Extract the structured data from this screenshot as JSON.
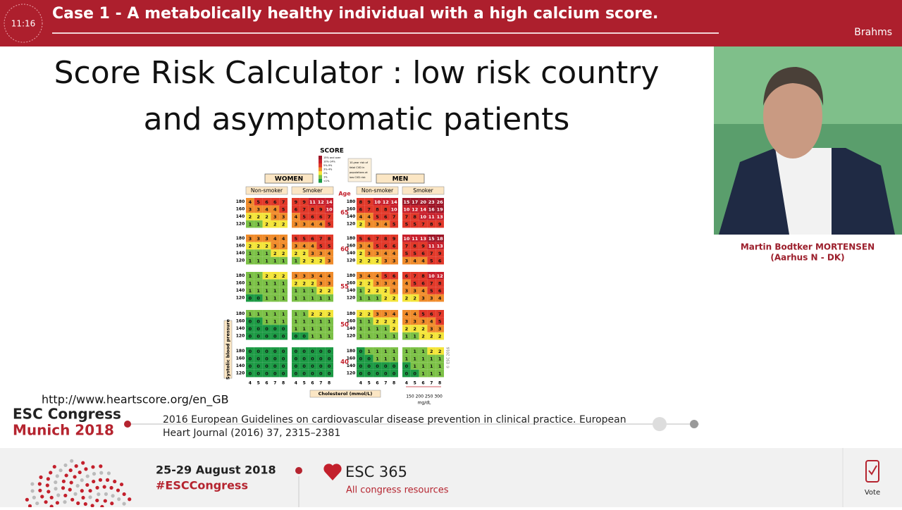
{
  "header": {
    "time": "11:16",
    "title": "Case 1 - A metabolically healthy individual with a high calcium score.",
    "room": "Brahms"
  },
  "slide": {
    "title": [
      "Score Risk Calculator : low risk country",
      "and asymptomatic patients"
    ],
    "url": "http://www.heartscore.org/en_GB",
    "reference": [
      "2016 European Guidelines on cardiovascular disease prevention in clinical practice. European",
      "Heart Journal (2016) 37, 2315–2381"
    ],
    "chart": {
      "logo": "SCORE",
      "legend": [
        "15% and over",
        "10%-14%",
        "5%-9%",
        "3%-4%",
        "2%",
        "1%",
        "<1%"
      ],
      "legend_note": [
        "10-year risk of",
        "fatal CVD in",
        "populations at",
        "low CVD risk"
      ],
      "sexes": [
        "WOMEN",
        "MEN"
      ],
      "panel_headers": [
        "Non-smoker",
        "Smoker",
        "Non-smoker",
        "Smoker"
      ],
      "age_label": "Age",
      "sbp": [
        "180",
        "160",
        "140",
        "120"
      ],
      "groups": [
        {
          "age": "65",
          "panels": [
            [
              [
                4,
                5,
                6,
                6,
                7
              ],
              [
                3,
                3,
                4,
                4,
                5
              ],
              [
                2,
                2,
                2,
                3,
                3
              ],
              [
                1,
                1,
                2,
                2,
                2
              ]
            ],
            [
              [
                9,
                9,
                11,
                12,
                14
              ],
              [
                6,
                7,
                8,
                9,
                10
              ],
              [
                4,
                5,
                6,
                6,
                7
              ],
              [
                3,
                3,
                4,
                4,
                5
              ]
            ],
            [
              [
                8,
                9,
                10,
                12,
                14
              ],
              [
                6,
                7,
                8,
                8,
                10
              ],
              [
                4,
                4,
                5,
                6,
                7
              ],
              [
                2,
                3,
                3,
                4,
                5
              ]
            ],
            [
              [
                15,
                17,
                20,
                23,
                26
              ],
              [
                10,
                12,
                14,
                16,
                19
              ],
              [
                7,
                8,
                10,
                11,
                13
              ],
              [
                5,
                5,
                7,
                8,
                9
              ]
            ]
          ]
        },
        {
          "age": "60",
          "panels": [
            [
              [
                3,
                3,
                3,
                4,
                4
              ],
              [
                2,
                2,
                2,
                3,
                3
              ],
              [
                1,
                1,
                1,
                2,
                2
              ],
              [
                1,
                1,
                1,
                1,
                1
              ]
            ],
            [
              [
                5,
                5,
                6,
                7,
                8
              ],
              [
                3,
                4,
                4,
                5,
                5
              ],
              [
                2,
                2,
                3,
                3,
                4
              ],
              [
                1,
                2,
                2,
                2,
                3
              ]
            ],
            [
              [
                5,
                6,
                7,
                8,
                9
              ],
              [
                3,
                4,
                5,
                6,
                6
              ],
              [
                2,
                3,
                3,
                4,
                4
              ],
              [
                2,
                2,
                2,
                3,
                3
              ]
            ],
            [
              [
                10,
                11,
                13,
                15,
                18
              ],
              [
                7,
                8,
                9,
                11,
                13
              ],
              [
                5,
                5,
                6,
                7,
                9
              ],
              [
                3,
                4,
                4,
                5,
                6
              ]
            ]
          ]
        },
        {
          "age": "55",
          "panels": [
            [
              [
                1,
                1,
                2,
                2,
                2
              ],
              [
                1,
                1,
                1,
                1,
                1
              ],
              [
                1,
                1,
                1,
                1,
                1
              ],
              [
                0,
                0,
                1,
                1,
                1
              ]
            ],
            [
              [
                3,
                3,
                3,
                4,
                4
              ],
              [
                2,
                2,
                2,
                3,
                3
              ],
              [
                1,
                1,
                1,
                2,
                2
              ],
              [
                1,
                1,
                1,
                1,
                1
              ]
            ],
            [
              [
                3,
                4,
                4,
                5,
                6
              ],
              [
                2,
                2,
                3,
                3,
                4
              ],
              [
                1,
                2,
                2,
                2,
                3
              ],
              [
                1,
                1,
                1,
                2,
                2
              ]
            ],
            [
              [
                6,
                7,
                8,
                10,
                12
              ],
              [
                4,
                5,
                6,
                7,
                8
              ],
              [
                3,
                3,
                4,
                5,
                6
              ],
              [
                2,
                2,
                3,
                3,
                4
              ]
            ]
          ]
        },
        {
          "age": "50",
          "panels": [
            [
              [
                1,
                1,
                1,
                1,
                1
              ],
              [
                0,
                0,
                1,
                1,
                1
              ],
              [
                0,
                0,
                0,
                0,
                0
              ],
              [
                0,
                0,
                0,
                0,
                0
              ]
            ],
            [
              [
                1,
                1,
                2,
                2,
                2
              ],
              [
                1,
                1,
                1,
                1,
                1
              ],
              [
                1,
                1,
                1,
                1,
                1
              ],
              [
                0,
                0,
                1,
                1,
                1
              ]
            ],
            [
              [
                2,
                2,
                3,
                3,
                4
              ],
              [
                1,
                1,
                2,
                2,
                2
              ],
              [
                1,
                1,
                1,
                1,
                2
              ],
              [
                1,
                1,
                1,
                1,
                1
              ]
            ],
            [
              [
                4,
                4,
                5,
                6,
                7
              ],
              [
                3,
                3,
                3,
                4,
                5
              ],
              [
                2,
                2,
                2,
                3,
                3
              ],
              [
                1,
                1,
                2,
                2,
                2
              ]
            ]
          ]
        },
        {
          "age": "40",
          "panels": [
            [
              [
                0,
                0,
                0,
                0,
                0
              ],
              [
                0,
                0,
                0,
                0,
                0
              ],
              [
                0,
                0,
                0,
                0,
                0
              ],
              [
                0,
                0,
                0,
                0,
                0
              ]
            ],
            [
              [
                0,
                0,
                0,
                0,
                0
              ],
              [
                0,
                0,
                0,
                0,
                0
              ],
              [
                0,
                0,
                0,
                0,
                0
              ],
              [
                0,
                0,
                0,
                0,
                0
              ]
            ],
            [
              [
                0,
                1,
                1,
                1,
                1
              ],
              [
                0,
                0,
                1,
                1,
                1
              ],
              [
                0,
                0,
                0,
                0,
                0
              ],
              [
                0,
                0,
                0,
                0,
                0
              ]
            ],
            [
              [
                1,
                1,
                1,
                2,
                2
              ],
              [
                1,
                1,
                1,
                1,
                1
              ],
              [
                0,
                1,
                1,
                1,
                1
              ],
              [
                0,
                0,
                1,
                1,
                1
              ]
            ]
          ]
        }
      ],
      "cholesterol_ticks": [
        "4",
        "5",
        "6",
        "7",
        "8"
      ],
      "x_label": "Cholesterol (mmol/L)",
      "y_label": "Systolic blood pressure",
      "mgdl_ticks": [
        "150 200 250 300"
      ],
      "mgdl_unit": "mg/dL",
      "copyright": "© ESC 2016"
    }
  },
  "speaker": {
    "name": "Martin Bodtker MORTENSEN",
    "affiliation": "(Aarhus N - DK)"
  },
  "branding": {
    "event": "ESC Congress",
    "city": "Munich 2018"
  },
  "footer": {
    "dates": "25-29 August 2018",
    "hashtag": "#ESCCongress",
    "esc365": "ESC 365",
    "esc365_sub": "All congress resources",
    "vote": "Vote"
  }
}
